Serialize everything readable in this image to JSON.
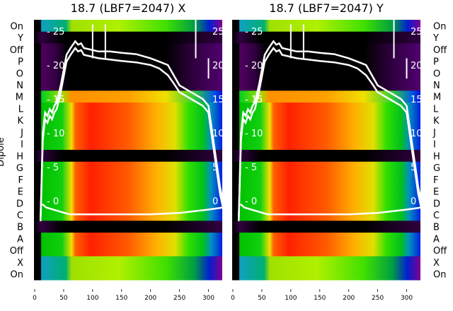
{
  "chart_data": {
    "type": "heatmap",
    "ylabel": "Dipole",
    "row_labels": [
      "On",
      "Y",
      "Off",
      "P",
      "O",
      "N",
      "M",
      "L",
      "K",
      "J",
      "I",
      "H",
      "G",
      "F",
      "E",
      "D",
      "C",
      "B",
      "A",
      "Off",
      "X",
      "On"
    ],
    "row_kind": [
      "cool",
      "dark",
      "purple",
      "purple",
      "purple",
      "purple",
      "light",
      "warm",
      "warm",
      "warm",
      "warm",
      "dark",
      "warm",
      "warm",
      "warm",
      "warm",
      "warm",
      "dark",
      "warm",
      "warm",
      "cool",
      "cool"
    ],
    "xlim": [
      0,
      325
    ],
    "x_ticks": [
      "0",
      "50",
      "100",
      "150",
      "200",
      "250",
      "300"
    ],
    "x_tick_values": [
      0,
      50,
      100,
      150,
      200,
      250,
      300
    ],
    "overlay_ylim": [
      -3.5,
      26.5
    ],
    "overlay_ticks": [
      "0",
      "5",
      "10",
      "15",
      "20",
      "25"
    ],
    "overlay_tick_values": [
      0,
      5,
      10,
      15,
      20,
      25
    ],
    "panels": [
      {
        "title": "18.7 (LBF7=2047) X",
        "series": [
          {
            "name": "upper",
            "x": [
              10,
              14,
              18,
              22,
              26,
              30,
              34,
              38,
              45,
              55,
              62,
              70,
              75,
              80,
              85,
              95,
              110,
              130,
              150,
              175,
              200,
              215,
              230,
              240,
              250,
              260,
              270,
              280,
              290,
              300,
              305,
              310,
              315,
              320,
              325
            ],
            "y": [
              -3,
              10,
              13,
              12.5,
              13.5,
              13,
              14,
              14.5,
              17,
              21.5,
              22.5,
              23.5,
              23,
              23.2,
              22.5,
              22.3,
              22,
              22,
              21.8,
              21.6,
              21,
              20.5,
              20,
              18.5,
              17,
              16.5,
              16,
              15.5,
              15,
              14,
              11,
              8,
              5,
              2,
              0
            ]
          },
          {
            "name": "lower",
            "x": [
              10,
              14,
              18,
              22,
              26,
              30,
              34,
              38,
              45,
              55,
              62,
              70,
              75,
              80,
              85,
              95,
              110,
              130,
              150,
              175,
              200,
              215,
              230,
              240,
              250,
              260,
              270,
              280,
              290,
              300,
              305,
              310,
              315,
              320,
              325
            ],
            "y": [
              -3,
              9,
              12,
              11.5,
              12.5,
              12,
              13,
              13.5,
              16,
              20.5,
              21.5,
              22.5,
              22,
              22.2,
              21.5,
              21.3,
              21,
              20.8,
              20.6,
              20.4,
              20,
              19.5,
              18.5,
              17.3,
              16,
              15.5,
              15,
              14.5,
              14,
              13,
              10,
              7,
              4,
              1,
              -1
            ]
          },
          {
            "name": "baseline",
            "x": [
              13,
              20,
              40,
              60,
              100,
              150,
              200,
              250,
              280,
              300,
              325
            ],
            "y": [
              -0.5,
              -1,
              -1.5,
              -2,
              -2,
              -2,
              -2,
              -1.8,
              -1.5,
              -1.3,
              -1
            ]
          }
        ]
      },
      {
        "title": "18.7 (LBF7=2047) Y",
        "series": [
          {
            "name": "upper",
            "x": [
              10,
              14,
              18,
              22,
              26,
              30,
              34,
              38,
              45,
              55,
              62,
              70,
              75,
              80,
              85,
              95,
              110,
              130,
              150,
              175,
              200,
              215,
              230,
              240,
              250,
              260,
              270,
              280,
              290,
              300,
              305,
              310,
              315,
              320,
              325
            ],
            "y": [
              -3,
              10,
              13,
              12.5,
              13.5,
              13,
              14,
              14.5,
              17,
              21.5,
              22.5,
              23.5,
              23,
              23.2,
              22.5,
              22.3,
              22,
              22,
              21.8,
              21.6,
              21,
              20.5,
              20,
              18.5,
              17,
              16.5,
              16,
              15.5,
              15,
              14,
              11,
              8,
              5,
              2,
              0
            ]
          },
          {
            "name": "lower",
            "x": [
              10,
              14,
              18,
              22,
              26,
              30,
              34,
              38,
              45,
              55,
              62,
              70,
              75,
              80,
              85,
              95,
              110,
              130,
              150,
              175,
              200,
              215,
              230,
              240,
              250,
              260,
              270,
              280,
              290,
              300,
              305,
              310,
              315,
              320,
              325
            ],
            "y": [
              -3,
              9,
              12,
              11.5,
              12.5,
              12,
              13,
              13.5,
              16,
              20.5,
              21.5,
              22.5,
              22,
              22.2,
              21.5,
              21.3,
              21,
              20.8,
              20.6,
              20.4,
              20,
              19.5,
              18.5,
              17.3,
              16,
              15.5,
              15,
              14.5,
              14,
              13,
              10,
              7,
              4,
              1,
              -1
            ]
          },
          {
            "name": "baseline",
            "x": [
              13,
              20,
              40,
              60,
              100,
              150,
              200,
              250,
              280,
              300,
              325
            ],
            "y": [
              -0.5,
              -1,
              -1.5,
              -2,
              -2,
              -2,
              -2,
              -1.8,
              -1.5,
              -1.3,
              -1
            ]
          }
        ]
      }
    ]
  }
}
